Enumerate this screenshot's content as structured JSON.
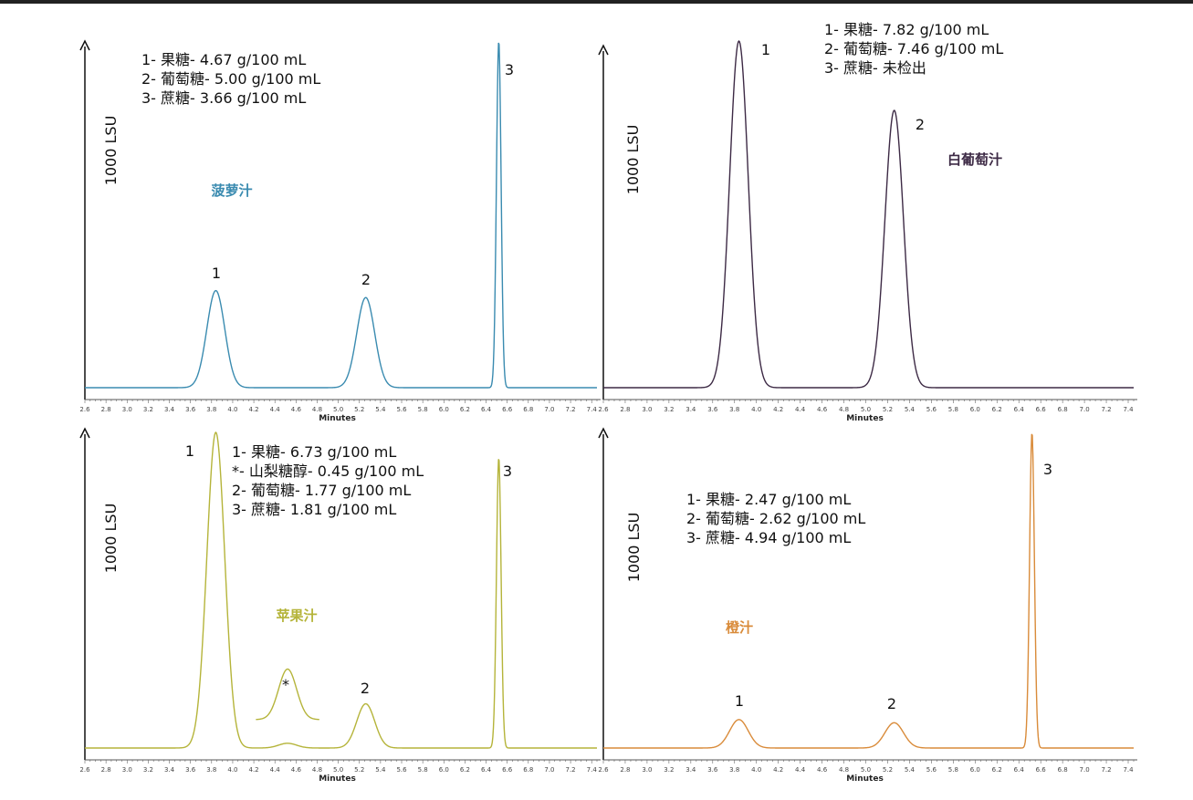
{
  "chart_data": [
    {
      "type": "line",
      "sample_name": "菠萝汁",
      "color": "#3a8bb0",
      "xlabel": "Minutes",
      "ylabel": "1000 LSU",
      "xlim": [
        2.6,
        7.45
      ],
      "x_ticks": [
        "2.6",
        "2.8",
        "3.0",
        "3.2",
        "3.4",
        "3.6",
        "3.8",
        "4.0",
        "4.2",
        "4.4",
        "4.6",
        "4.8",
        "5.0",
        "5.2",
        "5.4",
        "5.6",
        "5.8",
        "6.0",
        "6.2",
        "6.4",
        "6.6",
        "6.8",
        "7.0",
        "7.2",
        "7.4"
      ],
      "legend": [
        "1- 果糖- 4.67 g/100 mL",
        "2- 葡萄糖- 5.00 g/100 mL",
        "3- 蔗糖- 3.66 g/100 mL"
      ],
      "peaks": [
        {
          "label": "1",
          "rt": 3.84,
          "height": 0.28,
          "sigma": 0.085
        },
        {
          "label": "2",
          "rt": 5.26,
          "height": 0.26,
          "sigma": 0.085
        },
        {
          "label": "3",
          "rt": 6.52,
          "height": 1.0,
          "sigma": 0.022
        }
      ]
    },
    {
      "type": "line",
      "sample_name": "白葡萄汁",
      "color": "#3d2a45",
      "xlabel": "Minutes",
      "ylabel": "1000 LSU",
      "xlim": [
        2.6,
        7.45
      ],
      "x_ticks": [
        "2.6",
        "2.8",
        "3.0",
        "3.2",
        "3.4",
        "3.6",
        "3.8",
        "4.0",
        "4.2",
        "4.4",
        "4.6",
        "4.8",
        "5.0",
        "5.2",
        "5.4",
        "5.6",
        "5.8",
        "6.0",
        "6.2",
        "6.4",
        "6.6",
        "6.8",
        "7.0",
        "7.2",
        "7.4"
      ],
      "legend": [
        "1- 果糖- 7.82 g/100 mL",
        "2- 葡萄糖- 7.46 g/100 mL",
        "3- 蔗糖- 未检出"
      ],
      "peaks": [
        {
          "label": "1",
          "rt": 3.84,
          "height": 1.0,
          "sigma": 0.085
        },
        {
          "label": "2",
          "rt": 5.26,
          "height": 0.8,
          "sigma": 0.085
        }
      ]
    },
    {
      "type": "line",
      "sample_name": "苹果汁",
      "color": "#b5b43a",
      "xlabel": "Minutes",
      "ylabel": "1000 LSU",
      "xlim": [
        2.6,
        7.45
      ],
      "x_ticks": [
        "2.6",
        "2.8",
        "3.0",
        "3.2",
        "3.4",
        "3.6",
        "3.8",
        "4.0",
        "4.2",
        "4.4",
        "4.6",
        "4.8",
        "5.0",
        "5.2",
        "5.4",
        "5.6",
        "5.8",
        "6.0",
        "6.2",
        "6.4",
        "6.6",
        "6.8",
        "7.0",
        "7.2",
        "7.4"
      ],
      "legend": [
        "1- 果糖- 6.73 g/100 mL",
        "*- 山梨糖醇-  0.45 g/100 mL",
        "2- 葡萄糖- 1.77 g/100 mL",
        "3- 蔗糖- 1.81 g/100 mL"
      ],
      "peaks": [
        {
          "label": "1",
          "rt": 3.84,
          "height": 1.0,
          "sigma": 0.085
        },
        {
          "label": "*",
          "rt": 4.52,
          "height": 0.015,
          "sigma": 0.085
        },
        {
          "label": "2",
          "rt": 5.26,
          "height": 0.14,
          "sigma": 0.085
        },
        {
          "label": "3",
          "rt": 6.52,
          "height": 0.92,
          "sigma": 0.022
        }
      ],
      "inset": {
        "label": "*",
        "rt": 4.52,
        "sigma": 0.085,
        "x_range": [
          4.22,
          4.82
        ],
        "height": 0.16
      }
    },
    {
      "type": "line",
      "sample_name": "橙汁",
      "color": "#d98b3a",
      "xlabel": "Minutes",
      "ylabel": "1000 LSU",
      "xlim": [
        2.6,
        7.45
      ],
      "x_ticks": [
        "2.6",
        "2.8",
        "3.0",
        "3.2",
        "3.4",
        "3.6",
        "3.8",
        "4.0",
        "4.2",
        "4.4",
        "4.6",
        "4.8",
        "5.0",
        "5.2",
        "5.4",
        "5.6",
        "5.8",
        "6.0",
        "6.2",
        "6.4",
        "6.6",
        "6.8",
        "7.0",
        "7.2",
        "7.4"
      ],
      "legend": [
        "1- 果糖- 2.47 g/100 mL",
        "2- 葡萄糖- 2.62 g/100 mL",
        "3- 蔗糖- 4.94 g/100 mL"
      ],
      "peaks": [
        {
          "label": "1",
          "rt": 3.84,
          "height": 0.09,
          "sigma": 0.085
        },
        {
          "label": "2",
          "rt": 5.26,
          "height": 0.08,
          "sigma": 0.085
        },
        {
          "label": "3",
          "rt": 6.52,
          "height": 1.0,
          "sigma": 0.022
        }
      ]
    }
  ]
}
